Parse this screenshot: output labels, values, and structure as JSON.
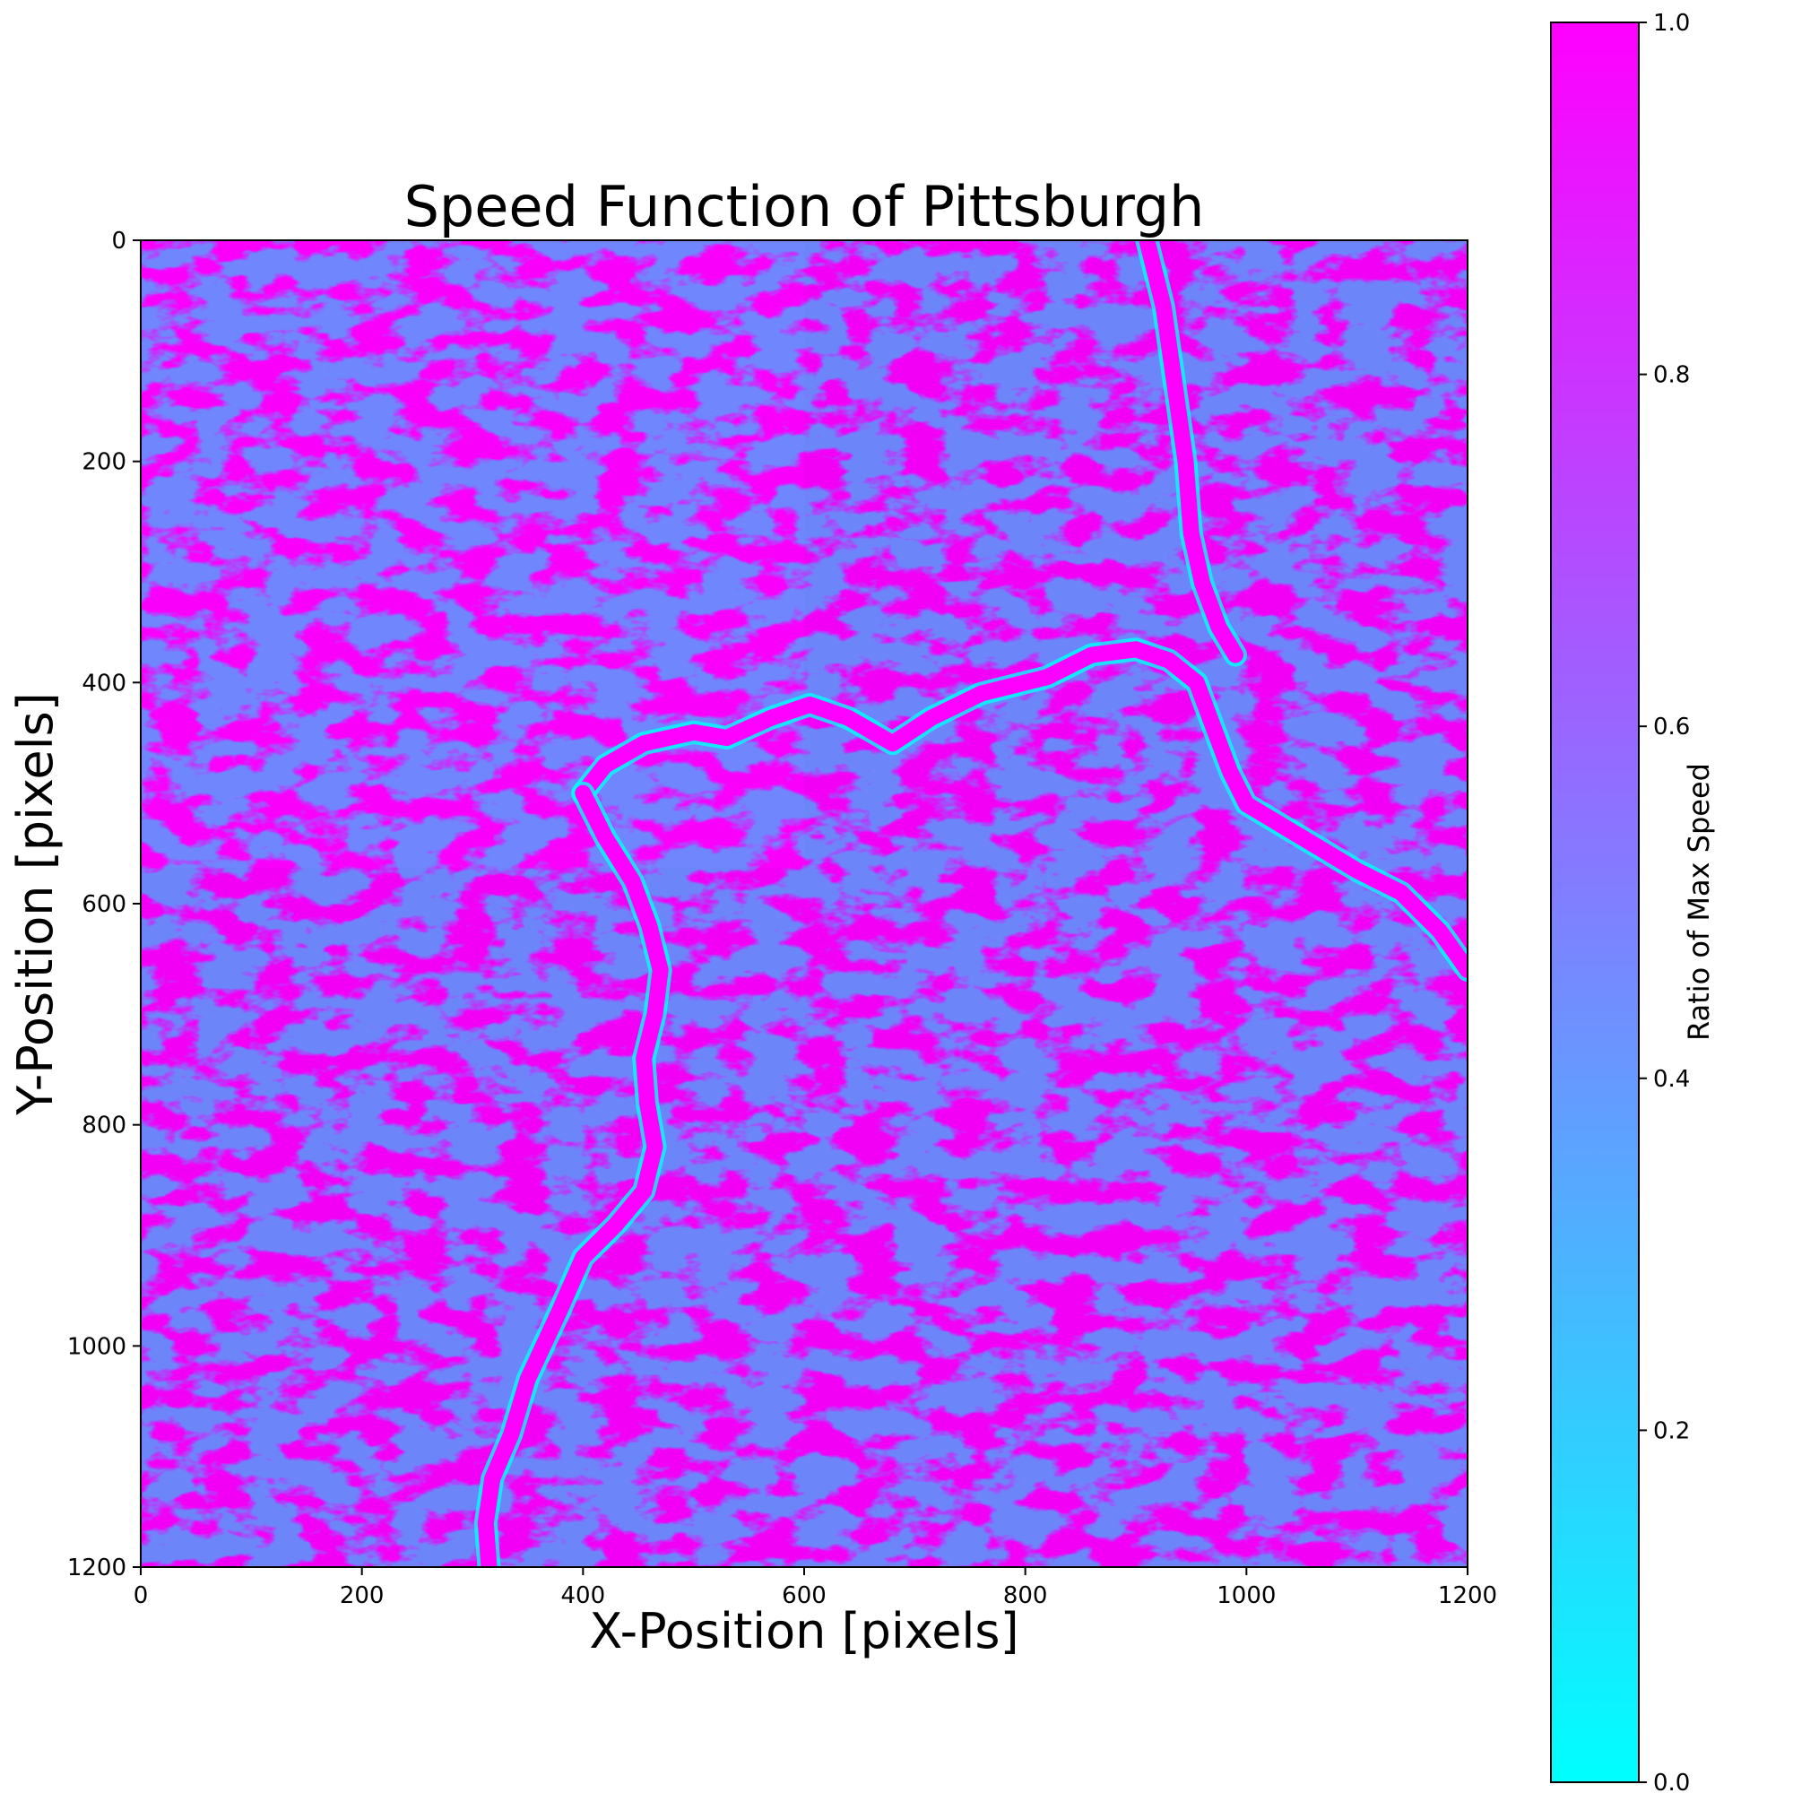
{
  "chart_data": {
    "type": "heatmap",
    "title": "Speed Function of Pittsburgh",
    "xlabel": "X-Position [pixels]",
    "ylabel": "Y-Position [pixels]",
    "xlim": [
      0,
      1200
    ],
    "ylim": [
      1200,
      0
    ],
    "x_ticks": [
      0,
      200,
      400,
      600,
      800,
      1000,
      1200
    ],
    "y_ticks": [
      0,
      200,
      400,
      600,
      800,
      1000,
      1200
    ],
    "colormap": "cool",
    "colorbar": {
      "label": "Ratio of Max Speed",
      "range": [
        0.0,
        1.0
      ],
      "ticks": [
        "0.0",
        "0.2",
        "0.4",
        "0.6",
        "0.8",
        "1.0"
      ],
      "min_color": "#00ffff",
      "max_color": "#ff00ff"
    },
    "grid": false,
    "river_channels": [
      {
        "points": [
          [
            910,
            0
          ],
          [
            925,
            60
          ],
          [
            935,
            130
          ],
          [
            945,
            200
          ],
          [
            950,
            265
          ],
          [
            960,
            310
          ],
          [
            975,
            350
          ],
          [
            990,
            375
          ]
        ]
      },
      {
        "points": [
          [
            400,
            500
          ],
          [
            420,
            475
          ],
          [
            455,
            455
          ],
          [
            500,
            445
          ],
          [
            530,
            450
          ],
          [
            570,
            432
          ],
          [
            605,
            420
          ],
          [
            640,
            432
          ],
          [
            680,
            455
          ],
          [
            715,
            432
          ],
          [
            760,
            410
          ],
          [
            820,
            395
          ],
          [
            860,
            375
          ],
          [
            900,
            370
          ],
          [
            930,
            380
          ],
          [
            955,
            400
          ],
          [
            970,
            440
          ],
          [
            985,
            480
          ],
          [
            1000,
            510
          ],
          [
            1050,
            540
          ],
          [
            1100,
            570
          ],
          [
            1140,
            590
          ],
          [
            1175,
            625
          ],
          [
            1200,
            660
          ]
        ]
      },
      {
        "points": [
          [
            400,
            500
          ],
          [
            420,
            540
          ],
          [
            445,
            580
          ],
          [
            460,
            620
          ],
          [
            470,
            660
          ],
          [
            465,
            700
          ],
          [
            455,
            740
          ],
          [
            458,
            780
          ],
          [
            465,
            820
          ],
          [
            455,
            860
          ],
          [
            430,
            890
          ],
          [
            400,
            920
          ],
          [
            378,
            970
          ],
          [
            350,
            1030
          ],
          [
            335,
            1080
          ],
          [
            318,
            1120
          ],
          [
            312,
            1160
          ],
          [
            315,
            1200
          ]
        ]
      }
    ]
  }
}
